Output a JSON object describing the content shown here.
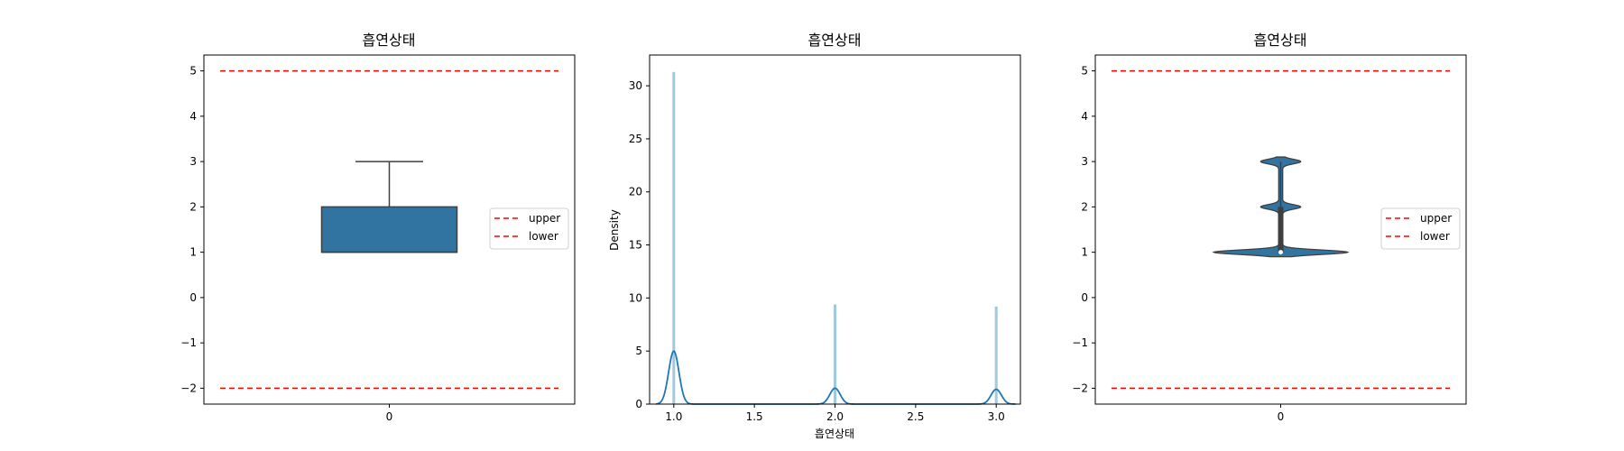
{
  "colors": {
    "box": "#3274a1",
    "kde": "#1f77b4",
    "hist": "#9ecae1",
    "limit": "#ff0000",
    "edge": "#3f3f3f"
  },
  "chart_data": [
    {
      "type": "box",
      "title": "흡연상태",
      "xticks": [
        "0"
      ],
      "yticks": [
        "−2",
        "−1",
        "0",
        "1",
        "2",
        "3",
        "4",
        "5"
      ],
      "ylim": [
        -2.35,
        5.35
      ],
      "box": {
        "q1": 1,
        "median": 1,
        "q3": 2,
        "whisker_low": 1,
        "whisker_high": 3
      },
      "upper": 5,
      "lower": -2,
      "legend": [
        "upper",
        "lower"
      ],
      "legend_position": "center-right"
    },
    {
      "type": "histogram+kde",
      "title": "흡연상태",
      "xlabel": "흡연상태",
      "ylabel": "Density",
      "xlim": [
        0.85,
        3.15
      ],
      "ylim": [
        0,
        32.9
      ],
      "xticks": [
        "1.0",
        "1.5",
        "2.0",
        "2.5",
        "3.0"
      ],
      "yticks": [
        "0",
        "5",
        "10",
        "15",
        "20",
        "25",
        "30"
      ],
      "hist": [
        {
          "x": 1.0,
          "density": 31.3
        },
        {
          "x": 2.0,
          "density": 9.4
        },
        {
          "x": 3.0,
          "density": 9.2
        }
      ],
      "kde_peaks": [
        {
          "x": 1.0,
          "density": 5.0
        },
        {
          "x": 2.0,
          "density": 1.5
        },
        {
          "x": 3.0,
          "density": 1.4
        }
      ]
    },
    {
      "type": "violin",
      "title": "흡연상태",
      "xticks": [
        "0"
      ],
      "yticks": [
        "−2",
        "−1",
        "0",
        "1",
        "2",
        "3",
        "4",
        "5"
      ],
      "ylim": [
        -2.35,
        5.35
      ],
      "median": 1,
      "upper": 5,
      "lower": -2,
      "legend": [
        "upper",
        "lower"
      ],
      "legend_position": "center-right"
    }
  ]
}
